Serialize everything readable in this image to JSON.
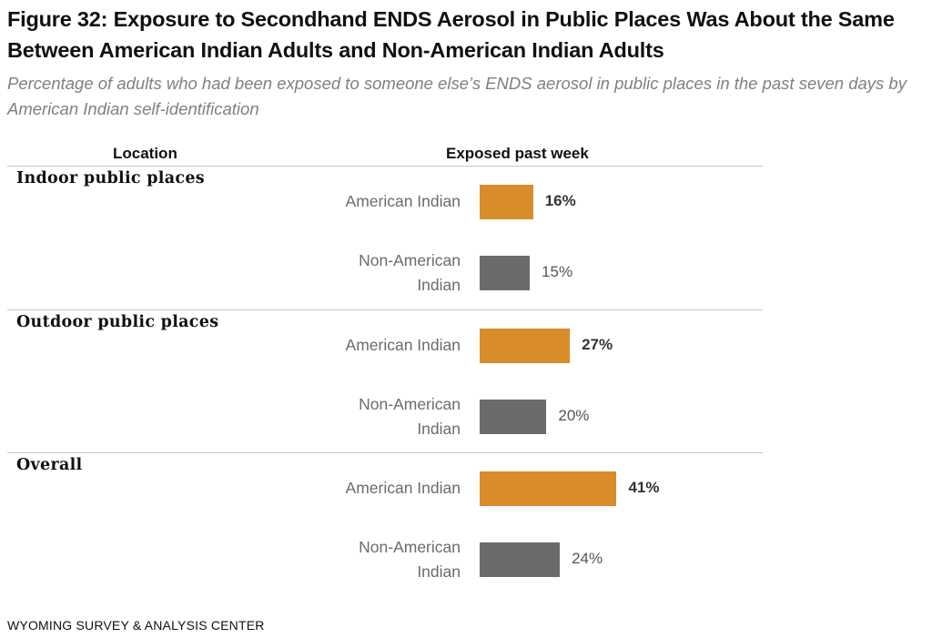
{
  "title": "Figure 32: Exposure to Secondhand ENDS Aerosol in Public Places Was About the Same Between American Indian Adults and Non-American Indian Adults",
  "subtitle": "Percentage of adults who had been exposed to someone else’s ENDS aerosol in public places in the past seven days by American Indian self-identification",
  "headers": {
    "location": "Location",
    "exposed": "Exposed past week"
  },
  "footer": "WYOMING SURVEY & ANALYSIS CENTER",
  "colors": {
    "american_indian": "#d98c2a",
    "non_american_indian": "#6b6b6b"
  },
  "chart_data": {
    "type": "bar",
    "orientation": "horizontal",
    "groups": [
      {
        "label": "Indoor public places",
        "rows": [
          {
            "label": "American Indian",
            "value": 16,
            "display": "16%"
          },
          {
            "label": "Non-American Indian",
            "value": 15,
            "display": "15%"
          }
        ]
      },
      {
        "label": "Outdoor public places",
        "rows": [
          {
            "label": "American Indian",
            "value": 27,
            "display": "27%"
          },
          {
            "label": "Non-American Indian",
            "value": 20,
            "display": "20%"
          }
        ]
      },
      {
        "label": "Overall",
        "rows": [
          {
            "label": "American Indian",
            "value": 41,
            "display": "41%"
          },
          {
            "label": "Non-American Indian",
            "value": 24,
            "display": "24%"
          }
        ]
      }
    ]
  }
}
